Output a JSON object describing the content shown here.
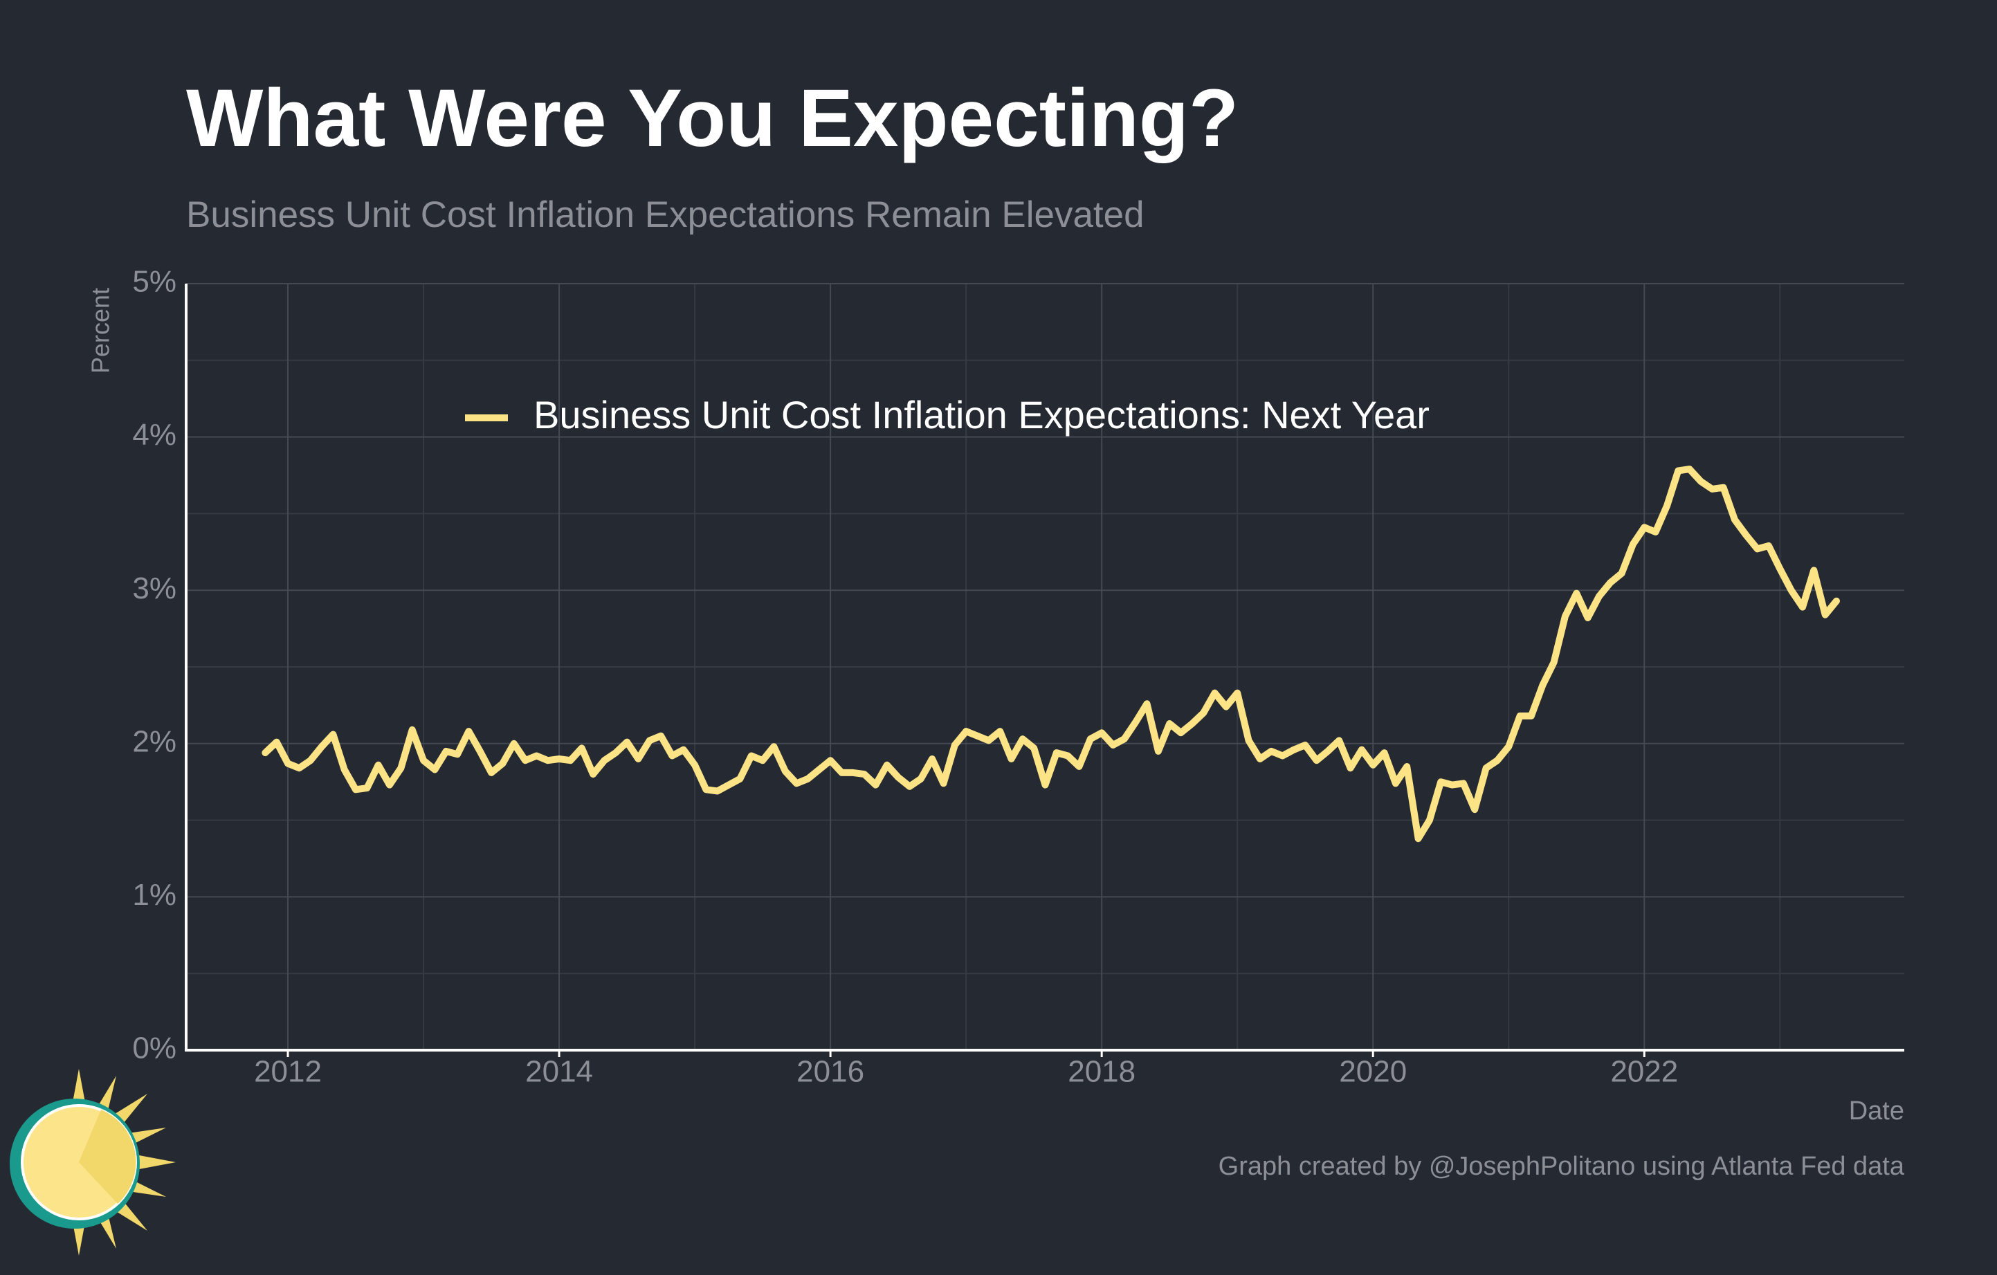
{
  "chart_data": {
    "type": "line",
    "title": "What Were You Expecting?",
    "subtitle": "Business Unit Cost Inflation Expectations Remain Elevated",
    "y_label": "Percent",
    "x_label": "Date",
    "credit": "Graph created by @JosephPolitano using Atlanta Fed data",
    "x": [
      "2011-11",
      "2011-12",
      "2012-01",
      "2012-02",
      "2012-03",
      "2012-04",
      "2012-05",
      "2012-06",
      "2012-07",
      "2012-08",
      "2012-09",
      "2012-10",
      "2012-11",
      "2012-12",
      "2013-01",
      "2013-02",
      "2013-03",
      "2013-04",
      "2013-05",
      "2013-06",
      "2013-07",
      "2013-08",
      "2013-09",
      "2013-10",
      "2013-11",
      "2013-12",
      "2014-01",
      "2014-02",
      "2014-03",
      "2014-04",
      "2014-05",
      "2014-06",
      "2014-07",
      "2014-08",
      "2014-09",
      "2014-10",
      "2014-11",
      "2014-12",
      "2015-01",
      "2015-02",
      "2015-03",
      "2015-04",
      "2015-05",
      "2015-06",
      "2015-07",
      "2015-08",
      "2015-09",
      "2015-10",
      "2015-11",
      "2015-12",
      "2016-01",
      "2016-02",
      "2016-03",
      "2016-04",
      "2016-05",
      "2016-06",
      "2016-07",
      "2016-08",
      "2016-09",
      "2016-10",
      "2016-11",
      "2016-12",
      "2017-01",
      "2017-02",
      "2017-03",
      "2017-04",
      "2017-05",
      "2017-06",
      "2017-07",
      "2017-08",
      "2017-09",
      "2017-10",
      "2017-11",
      "2017-12",
      "2018-01",
      "2018-02",
      "2018-03",
      "2018-04",
      "2018-05",
      "2018-06",
      "2018-07",
      "2018-08",
      "2018-09",
      "2018-10",
      "2018-11",
      "2018-12",
      "2019-01",
      "2019-02",
      "2019-03",
      "2019-04",
      "2019-05",
      "2019-06",
      "2019-07",
      "2019-08",
      "2019-09",
      "2019-10",
      "2019-11",
      "2019-12",
      "2020-01",
      "2020-02",
      "2020-03",
      "2020-04",
      "2020-05",
      "2020-06",
      "2020-07",
      "2020-08",
      "2020-09",
      "2020-10",
      "2020-11",
      "2020-12",
      "2021-01",
      "2021-02",
      "2021-03",
      "2021-04",
      "2021-05",
      "2021-06",
      "2021-07",
      "2021-08",
      "2021-09",
      "2021-10",
      "2021-11",
      "2021-12",
      "2022-01",
      "2022-02",
      "2022-03",
      "2022-04",
      "2022-05",
      "2022-06",
      "2022-07",
      "2022-08",
      "2022-09",
      "2022-10",
      "2022-11",
      "2022-12",
      "2023-01",
      "2023-02",
      "2023-03",
      "2023-04",
      "2023-05",
      "2023-06"
    ],
    "series": [
      {
        "name": "Business Unit Cost Inflation Expectations: Next Year",
        "color": "#fbe386",
        "values": [
          1.94,
          2.01,
          1.87,
          1.84,
          1.89,
          1.98,
          2.06,
          1.83,
          1.7,
          1.71,
          1.86,
          1.73,
          1.84,
          2.09,
          1.89,
          1.83,
          1.95,
          1.93,
          2.08,
          1.95,
          1.81,
          1.87,
          2.0,
          1.89,
          1.92,
          1.89,
          1.9,
          1.89,
          1.97,
          1.8,
          1.89,
          1.94,
          2.01,
          1.9,
          2.02,
          2.05,
          1.92,
          1.96,
          1.86,
          1.7,
          1.69,
          1.73,
          1.77,
          1.92,
          1.89,
          1.98,
          1.82,
          1.74,
          1.77,
          1.83,
          1.89,
          1.81,
          1.81,
          1.8,
          1.73,
          1.86,
          1.78,
          1.72,
          1.77,
          1.9,
          1.74,
          1.99,
          2.08,
          2.05,
          2.02,
          2.08,
          1.9,
          2.03,
          1.97,
          1.73,
          1.94,
          1.92,
          1.85,
          2.03,
          2.07,
          1.99,
          2.03,
          2.14,
          2.26,
          1.95,
          2.13,
          2.07,
          2.13,
          2.2,
          2.33,
          2.24,
          2.33,
          2.02,
          1.9,
          1.95,
          1.92,
          1.96,
          1.99,
          1.89,
          1.95,
          2.02,
          1.84,
          1.96,
          1.86,
          1.94,
          1.74,
          1.85,
          1.38,
          1.5,
          1.75,
          1.73,
          1.74,
          1.57,
          1.84,
          1.89,
          1.98,
          2.18,
          2.18,
          2.38,
          2.53,
          2.83,
          2.98,
          2.82,
          2.96,
          3.05,
          3.11,
          3.3,
          3.41,
          3.38,
          3.55,
          3.78,
          3.79,
          3.71,
          3.66,
          3.67,
          3.46,
          3.36,
          3.27,
          3.29,
          3.14,
          3.0,
          2.89,
          3.13,
          2.84,
          2.93
        ]
      }
    ],
    "xlim": [
      "2011-04",
      "2023-12"
    ],
    "xticks": [
      {
        "value": "2012-01",
        "label": "2012"
      },
      {
        "value": "2014-01",
        "label": "2014"
      },
      {
        "value": "2016-01",
        "label": "2016"
      },
      {
        "value": "2018-01",
        "label": "2018"
      },
      {
        "value": "2020-01",
        "label": "2020"
      },
      {
        "value": "2022-01",
        "label": "2022"
      }
    ],
    "ylim": [
      0,
      5
    ],
    "yticks": [
      {
        "value": 0,
        "label": "0%"
      },
      {
        "value": 1,
        "label": "1%"
      },
      {
        "value": 2,
        "label": "2%"
      },
      {
        "value": 3,
        "label": "3%"
      },
      {
        "value": 4,
        "label": "4%"
      },
      {
        "value": 5,
        "label": "5%"
      }
    ],
    "grid": true,
    "legend": "top"
  }
}
